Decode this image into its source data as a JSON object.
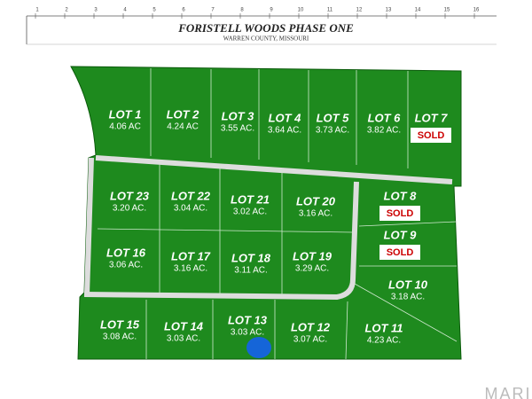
{
  "header": {
    "title": "FORISTELL WOODS PHASE ONE",
    "subtitle": "WARREN COUNTY, MISSOURI"
  },
  "ruler_labels": [
    "1",
    "2",
    "3",
    "4",
    "5",
    "6",
    "7",
    "8",
    "9",
    "10",
    "11",
    "12",
    "13",
    "14",
    "15",
    "16"
  ],
  "lots": [
    {
      "label": "LOT 1",
      "area": "4.06 AC"
    },
    {
      "label": "LOT 2",
      "area": "4.24 AC"
    },
    {
      "label": "LOT 3",
      "area": "3.55 AC."
    },
    {
      "label": "LOT 4",
      "area": "3.64 AC."
    },
    {
      "label": "LOT 5",
      "area": "3.73 AC."
    },
    {
      "label": "LOT 6",
      "area": "3.82 AC."
    },
    {
      "label": "LOT 7",
      "status": "SOLD"
    },
    {
      "label": "LOT 8",
      "status": "SOLD"
    },
    {
      "label": "LOT 9",
      "status": "SOLD"
    },
    {
      "label": "LOT 10",
      "area": "3.18 AC."
    },
    {
      "label": "LOT 11",
      "area": "4.23 AC."
    },
    {
      "label": "LOT 12",
      "area": "3.07 AC."
    },
    {
      "label": "LOT 13",
      "area": "3.03 AC."
    },
    {
      "label": "LOT 14",
      "area": "3.03 AC."
    },
    {
      "label": "LOT 15",
      "area": "3.08 AC."
    },
    {
      "label": "LOT 16",
      "area": "3.06 AC."
    },
    {
      "label": "LOT 17",
      "area": "3.16 AC."
    },
    {
      "label": "LOT 18",
      "area": "3.11 AC."
    },
    {
      "label": "LOT 19",
      "area": "3.29 AC."
    },
    {
      "label": "LOT 20",
      "area": "3.16 AC."
    },
    {
      "label": "LOT 21",
      "area": "3.02 AC."
    },
    {
      "label": "LOT 22",
      "area": "3.04 AC."
    },
    {
      "label": "LOT 23",
      "area": "3.20 AC."
    }
  ],
  "watermark": "MARIS"
}
